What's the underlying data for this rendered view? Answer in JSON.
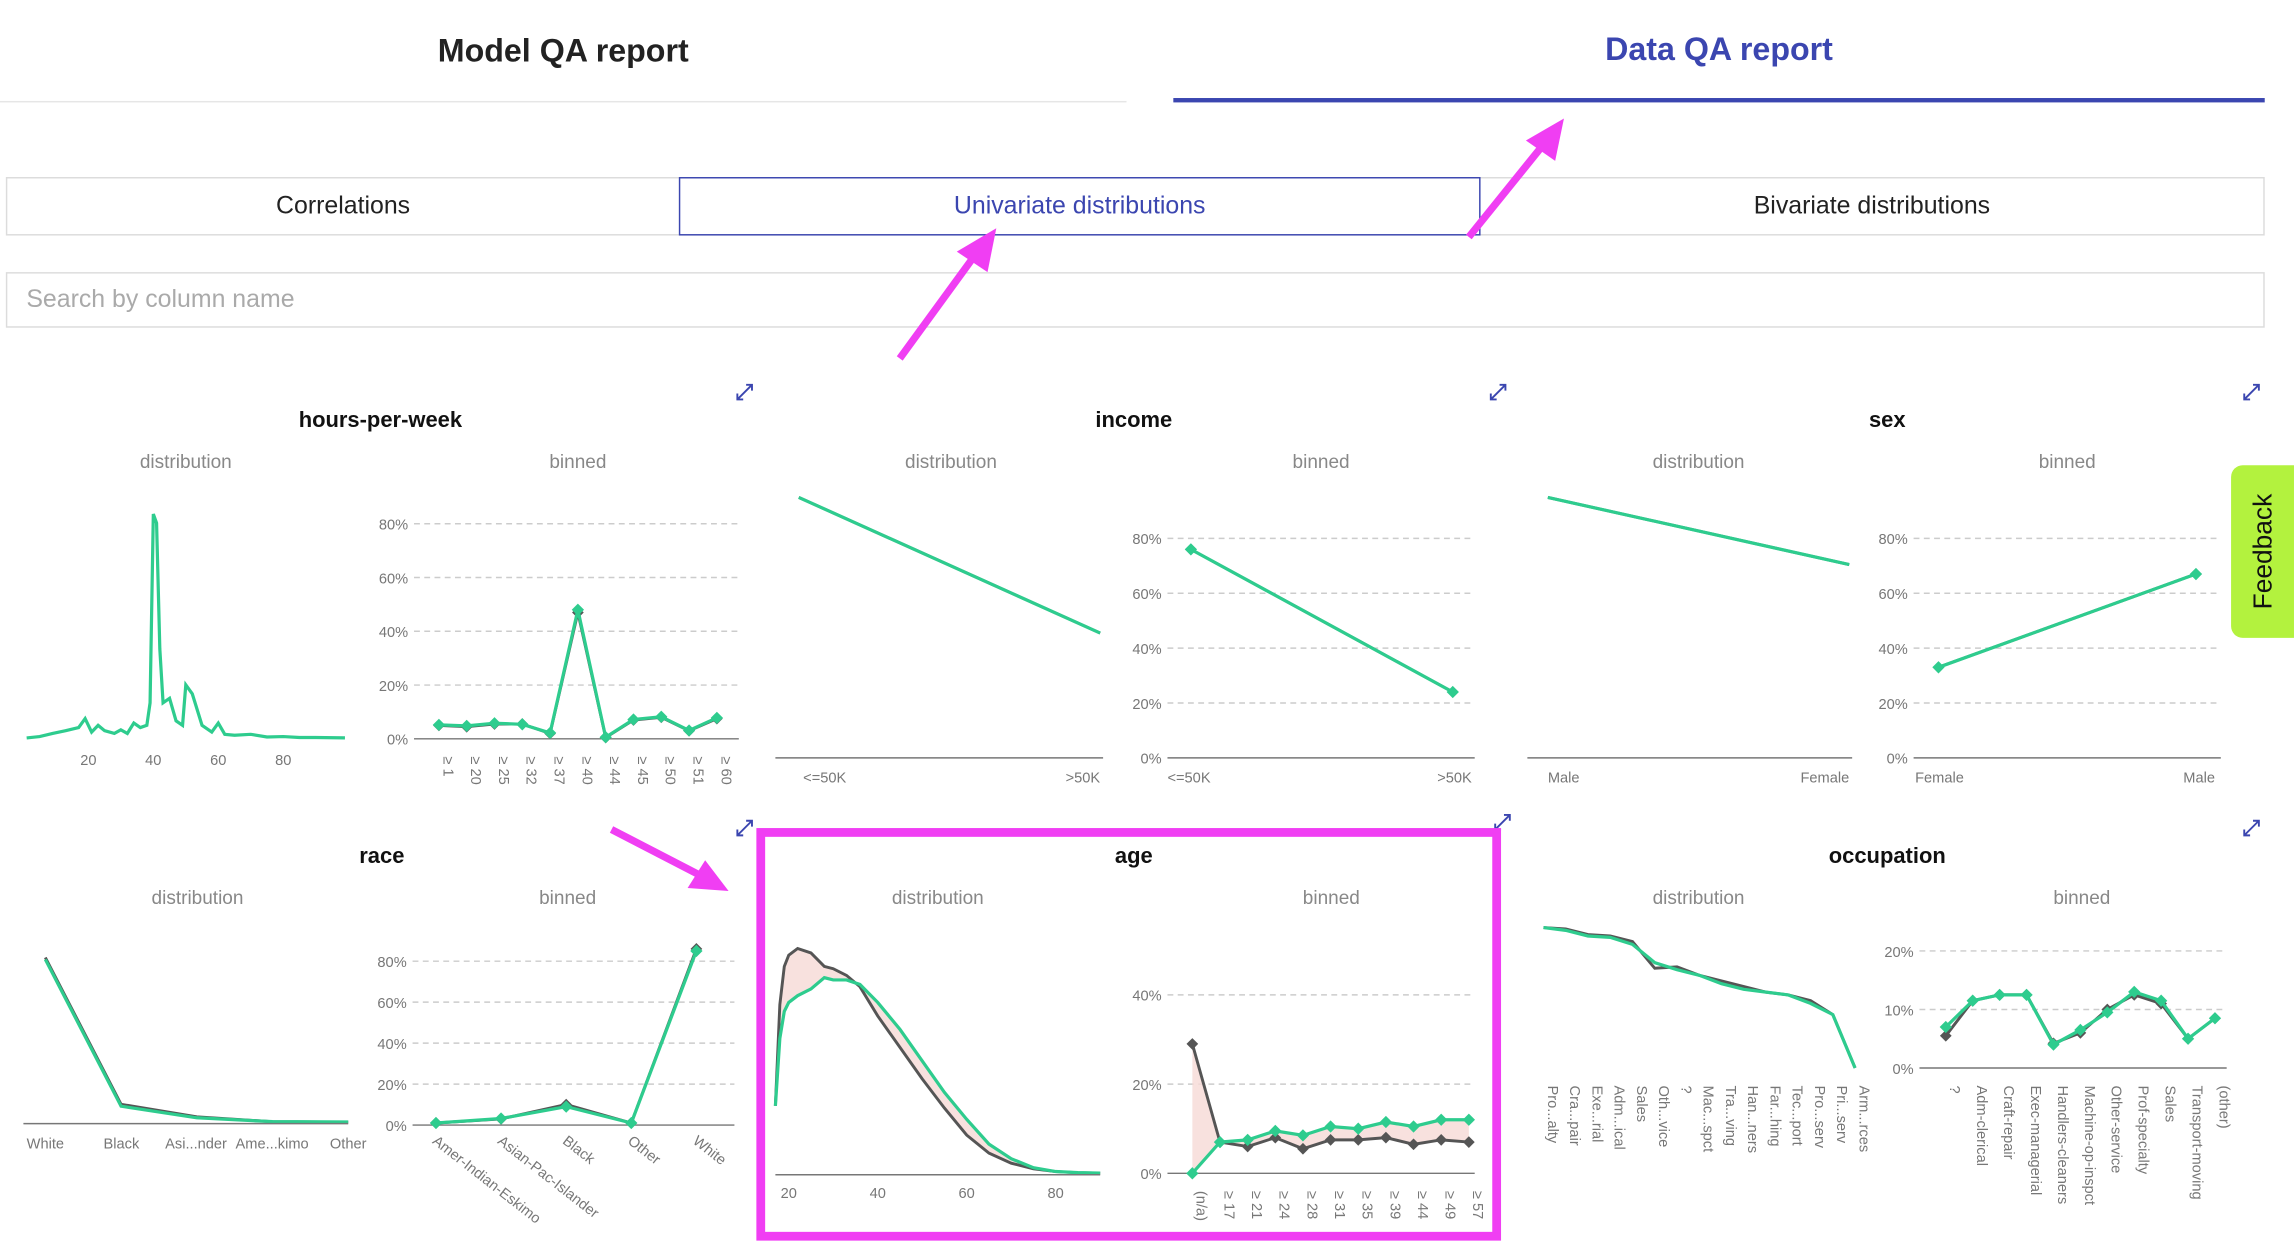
{
  "top_tabs": {
    "model": "Model QA report",
    "data": "Data QA report",
    "active": "data"
  },
  "sub_tabs": {
    "correlations": "Correlations",
    "univariate": "Univariate distributions",
    "bivariate": "Bivariate distributions",
    "active": "univariate"
  },
  "search": {
    "placeholder": "Search by column name"
  },
  "feedback_label": "Feedback",
  "labels": {
    "distribution": "distribution",
    "binned": "binned"
  },
  "colors": {
    "accent": "#3b46b0",
    "synthetic": "#2ecc8e",
    "original": "#555555",
    "highlight": "#f03ef3",
    "feedback": "#b3f23e"
  },
  "chart_data": [
    {
      "name": "hours-per-week",
      "type": "line",
      "panel": "distribution",
      "x": [
        1,
        5,
        9,
        13,
        17,
        19,
        21,
        23,
        25,
        28,
        30,
        32,
        34,
        36,
        38,
        39,
        40,
        41,
        42,
        43,
        45,
        47,
        49,
        50,
        52,
        55,
        58,
        60,
        62,
        65,
        70,
        75,
        80,
        85,
        90,
        99
      ],
      "y": [
        0.2,
        0.5,
        1.2,
        1.8,
        2.5,
        4.5,
        1.5,
        3.0,
        1.8,
        1.2,
        2.0,
        1.2,
        3.5,
        2.5,
        3.0,
        8,
        50,
        48,
        20,
        8,
        9,
        4,
        3,
        12,
        10,
        3,
        1.5,
        3.5,
        1,
        0.8,
        1,
        0.4,
        0.5,
        0.3,
        0.3,
        0.2
      ],
      "xticks": [
        "20",
        "40",
        "60",
        "80"
      ],
      "xlim": [
        0,
        100
      ],
      "ylim": [
        0,
        55
      ]
    },
    {
      "name": "hours-per-week",
      "type": "line",
      "panel": "binned",
      "categories": [
        "≥ 1",
        "≥ 20",
        "≥ 25",
        "≥ 32",
        "≥ 37",
        "≥ 40",
        "≥ 44",
        "≥ 45",
        "≥ 50",
        "≥ 51",
        "≥ 60"
      ],
      "series": [
        {
          "name": "original",
          "values": [
            5,
            4.5,
            5.5,
            5.5,
            2,
            47,
            0.5,
            7,
            8,
            3,
            7.5
          ]
        },
        {
          "name": "synthetic",
          "values": [
            5.2,
            4.8,
            5.8,
            5.4,
            2.2,
            48,
            0.6,
            7.2,
            8.2,
            3.1,
            7.8
          ]
        }
      ],
      "yticks": [
        "0%",
        "20%",
        "40%",
        "60%",
        "80%"
      ],
      "ylim": [
        0,
        80
      ]
    },
    {
      "name": "income",
      "type": "line",
      "panel": "distribution",
      "categories": [
        "<=50K",
        ">50K"
      ],
      "series": [
        {
          "name": "original",
          "values": [
            100,
            24
          ]
        },
        {
          "name": "synthetic",
          "values": [
            100,
            24
          ]
        }
      ]
    },
    {
      "name": "income",
      "type": "line",
      "panel": "binned",
      "categories": [
        "<=50K",
        ">50K"
      ],
      "series": [
        {
          "name": "original",
          "values": [
            76,
            24
          ]
        },
        {
          "name": "synthetic",
          "values": [
            76,
            24
          ]
        }
      ],
      "yticks": [
        "0%",
        "20%",
        "40%",
        "60%",
        "80%"
      ],
      "ylim": [
        0,
        80
      ]
    },
    {
      "name": "sex",
      "type": "line",
      "panel": "distribution",
      "categories": [
        "Male",
        "Female"
      ],
      "series": [
        {
          "name": "original",
          "values": [
            100,
            49
          ]
        },
        {
          "name": "synthetic",
          "values": [
            100,
            49
          ]
        }
      ]
    },
    {
      "name": "sex",
      "type": "line",
      "panel": "binned",
      "categories": [
        "Female",
        "Male"
      ],
      "series": [
        {
          "name": "original",
          "values": [
            33,
            67
          ]
        },
        {
          "name": "synthetic",
          "values": [
            33,
            67
          ]
        }
      ],
      "yticks": [
        "0%",
        "20%",
        "40%",
        "60%",
        "80%"
      ],
      "ylim": [
        0,
        80
      ]
    },
    {
      "name": "race",
      "type": "line",
      "panel": "distribution",
      "categories": [
        "White",
        "Black",
        "Asi...nder",
        "Ame...kimo",
        "Other"
      ],
      "series": [
        {
          "name": "original",
          "values": [
            86,
            10,
            3.5,
            1,
            0.8
          ]
        },
        {
          "name": "synthetic",
          "values": [
            85,
            9,
            3,
            1,
            0.8
          ]
        }
      ]
    },
    {
      "name": "race",
      "type": "line",
      "panel": "binned",
      "categories": [
        "Amer-Indian-Eskimo",
        "Asian-Pac-Islander",
        "Black",
        "Other",
        "White"
      ],
      "series": [
        {
          "name": "original",
          "values": [
            1,
            3,
            10,
            1,
            86
          ]
        },
        {
          "name": "synthetic",
          "values": [
            1,
            3.2,
            9,
            1,
            85
          ]
        }
      ],
      "yticks": [
        "0%",
        "20%",
        "40%",
        "60%",
        "80%"
      ],
      "ylim": [
        0,
        90
      ]
    },
    {
      "name": "age",
      "type": "line",
      "panel": "distribution",
      "x": [
        17,
        18,
        19,
        20,
        22,
        25,
        28,
        30,
        33,
        36,
        40,
        45,
        50,
        55,
        60,
        65,
        70,
        75,
        80,
        85,
        90
      ],
      "series": [
        {
          "name": "original",
          "values": [
            30,
            75,
            92,
            97,
            100,
            98,
            92,
            91,
            88,
            83,
            70,
            56,
            42,
            29,
            17,
            9,
            4.5,
            2,
            0.8,
            0.3,
            0.1
          ]
        },
        {
          "name": "synthetic",
          "values": [
            30,
            60,
            72,
            76,
            79,
            82,
            87,
            86,
            86,
            84,
            76,
            64,
            50,
            36,
            24,
            13,
            6.5,
            2.5,
            0.8,
            0.3,
            0.1
          ]
        }
      ],
      "xticks": [
        "20",
        "40",
        "60",
        "80"
      ],
      "xlim": [
        17,
        90
      ],
      "ylim": [
        0,
        108
      ]
    },
    {
      "name": "age",
      "type": "line",
      "panel": "binned",
      "categories": [
        "(n/a)",
        "≥ 17",
        "≥ 21",
        "≥ 24",
        "≥ 28",
        "≥ 31",
        "≥ 35",
        "≥ 39",
        "≥ 44",
        "≥ 49",
        "≥ 57"
      ],
      "series": [
        {
          "name": "original",
          "values": [
            29,
            7,
            6,
            8,
            5.5,
            7.5,
            7.5,
            8,
            6.5,
            7.5,
            7
          ]
        },
        {
          "name": "synthetic",
          "values": [
            0,
            7,
            7.5,
            9.5,
            8.5,
            10.5,
            10,
            11.5,
            10.5,
            12,
            12
          ]
        }
      ],
      "yticks": [
        "0%",
        "20%",
        "40%"
      ],
      "ylim": [
        0,
        40
      ]
    },
    {
      "name": "occupation",
      "type": "line",
      "panel": "distribution",
      "categories": [
        "Pro...alty",
        "Cra...pair",
        "Exe...rial",
        "Adm...ical",
        "Sales",
        "Oth...vice",
        "?",
        "Mac...spct",
        "Tra...ving",
        "Han...ners",
        "Far...hing",
        "Tec...port",
        "Pro...serv",
        "Pri...serv",
        "Arm...rces"
      ],
      "series": [
        {
          "name": "original",
          "values": [
            100,
            99,
            95,
            94,
            90,
            71,
            72,
            66,
            62,
            58,
            54,
            52,
            48,
            38,
            0
          ]
        },
        {
          "name": "synthetic",
          "values": [
            100,
            98,
            94,
            93,
            88,
            75,
            70,
            66,
            60,
            56,
            54,
            52,
            46,
            38,
            0
          ]
        }
      ]
    },
    {
      "name": "occupation",
      "type": "line",
      "panel": "binned",
      "categories": [
        "?",
        "Adm-clerical",
        "Craft-repair",
        "Exec-managerial",
        "Handlers-cleaners",
        "Machine-op-inspct",
        "Other-service",
        "Prof-specialty",
        "Sales",
        "Transport-moving",
        "(other)"
      ],
      "series": [
        {
          "name": "original",
          "values": [
            5.5,
            11.5,
            12.5,
            12.5,
            4.2,
            6,
            10,
            12.5,
            11,
            5,
            8.5
          ]
        },
        {
          "name": "synthetic",
          "values": [
            7,
            11.5,
            12.5,
            12.5,
            4,
            6.5,
            9.5,
            13,
            11.5,
            5,
            8.5
          ]
        }
      ],
      "yticks": [
        "0%",
        "10%",
        "20%"
      ],
      "ylim": [
        0,
        20
      ]
    }
  ]
}
